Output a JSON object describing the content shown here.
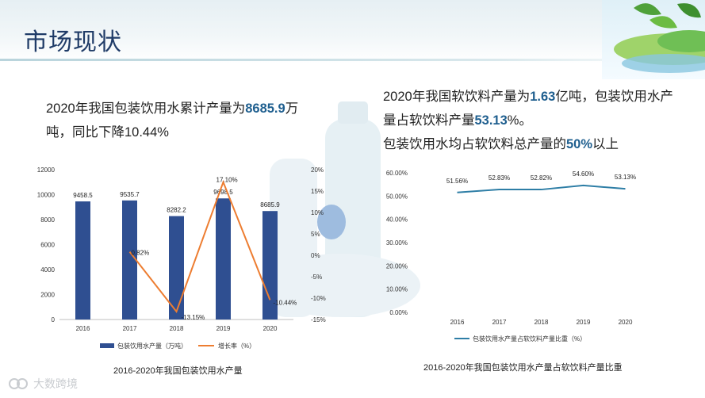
{
  "header": {
    "title": "市场现状"
  },
  "left_text": {
    "prefix": "2020年我国包装饮用水累计产量为",
    "highlight": "8685.9",
    "suffix": "万吨，同比下降10.44%"
  },
  "right_text": {
    "line1_a": "2020年我国软饮料产量为",
    "line1_hl": "1.63",
    "line1_b": "亿吨，包装饮用水产量占软饮料产量",
    "line1_hl2": "53.13",
    "line1_c": "%。",
    "line2_a": "包装饮用水均占软饮料总产量的",
    "line2_hl": "50%",
    "line2_b": "以上"
  },
  "watermark": {
    "text": "大数跨境"
  },
  "chart_data": [
    {
      "type": "bar",
      "categories": [
        "2016",
        "2017",
        "2018",
        "2019",
        "2020"
      ],
      "series": [
        {
          "name": "包装饮用水产量（万吨）",
          "type": "bar",
          "axis": "left",
          "values": [
            9458.5,
            9535.7,
            8282.2,
            9698.5,
            8685.9
          ],
          "labels": [
            "9458.5",
            "9535.7",
            "8282.2",
            "9698.5",
            "8685.9"
          ]
        },
        {
          "name": "增长率（%）",
          "type": "line",
          "axis": "right",
          "values": [
            null,
            0.82,
            -13.15,
            17.1,
            -10.44
          ],
          "labels": [
            "",
            "0.82%",
            "-13.15%",
            "17.10%",
            "-10.44%"
          ]
        }
      ],
      "y_left": {
        "range": [
          0,
          12000
        ],
        "ticks": [
          "0",
          "2000",
          "4000",
          "6000",
          "8000",
          "10000",
          "12000"
        ]
      },
      "y_right": {
        "range": [
          -15,
          20
        ],
        "ticks": [
          "-15%",
          "-10%",
          "-5%",
          "0%",
          "5%",
          "10%",
          "15%",
          "20%"
        ]
      },
      "legend": "bottom",
      "caption": "2016-2020年我国包装饮用水产量",
      "colors": {
        "bar": "#2f4f91",
        "line": "#ed7d31"
      }
    },
    {
      "type": "line",
      "categories": [
        "2016",
        "2017",
        "2018",
        "2019",
        "2020"
      ],
      "series": [
        {
          "name": "包装饮用水产量占软饮料产量比重（%）",
          "values": [
            51.56,
            52.83,
            52.82,
            54.6,
            53.13
          ],
          "labels": [
            "51.56%",
            "52.83%",
            "52.82%",
            "54.60%",
            "53.13%"
          ]
        }
      ],
      "y": {
        "range": [
          0,
          60
        ],
        "ticks": [
          "0.00%",
          "10.00%",
          "20.00%",
          "30.00%",
          "40.00%",
          "50.00%",
          "60.00%"
        ]
      },
      "legend": "bottom",
      "caption": "2016-2020年我国包装饮用水产量占软饮料产量比重",
      "colors": {
        "line": "#2e7ea6"
      }
    }
  ]
}
